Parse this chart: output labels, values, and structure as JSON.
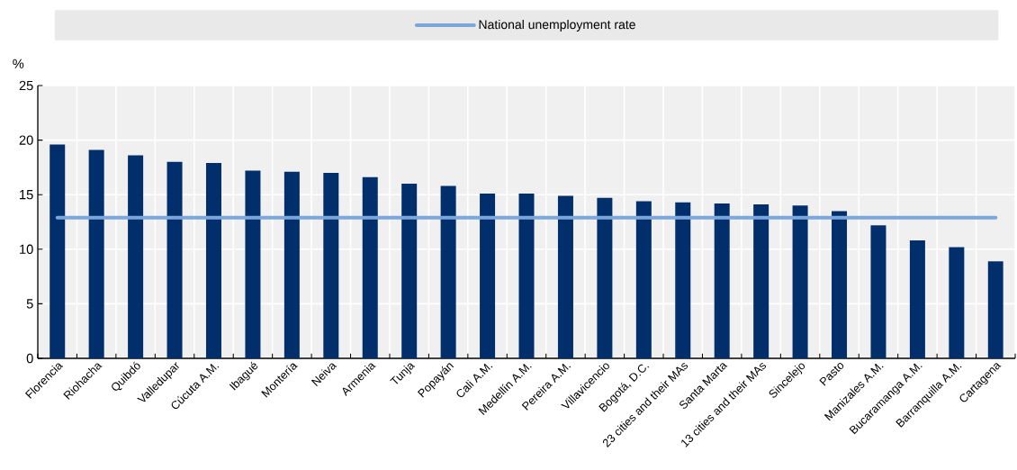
{
  "chart_data": {
    "type": "bar",
    "ylabel": "%",
    "categories": [
      "Florencia",
      "Riohacha",
      "Quibdó",
      "Valledupar",
      "Cúcuta A.M.",
      "Ibagué",
      "Montería",
      "Neiva",
      "Armenia",
      "Tunja",
      "Popayán",
      "Cali A.M.",
      "Medellín A.M.",
      "Pereira A.M.",
      "Villavicencio",
      "Bogotá, D.C.",
      "23 cities and their MAs",
      "Santa Marta",
      "13 cities and their MAs",
      "Sincelejo",
      "Pasto",
      "Manizales A.M.",
      "Bucaramanga A.M.",
      "Barranquilla A.M.",
      "Cartagena"
    ],
    "series": [
      {
        "color": "#002f6c",
        "values": [
          19.6,
          19.1,
          18.6,
          18.0,
          17.9,
          17.2,
          17.1,
          17.0,
          16.6,
          16.0,
          15.8,
          15.1,
          15.1,
          14.9,
          14.7,
          14.4,
          14.3,
          14.2,
          14.1,
          14.0,
          13.5,
          12.2,
          10.8,
          10.2,
          8.9
        ]
      },
      {
        "type": "line",
        "name": "National unemployment rate",
        "color": "#7ba7dc",
        "values": [
          12.9,
          12.9,
          12.9,
          12.9,
          12.9,
          12.9,
          12.9,
          12.9,
          12.9,
          12.9,
          12.9,
          12.9,
          12.9,
          12.9,
          12.9,
          12.9,
          12.9,
          12.9,
          12.9,
          12.9,
          12.9,
          12.9,
          12.9,
          12.9,
          12.9
        ]
      }
    ],
    "ylim": [
      0,
      25
    ],
    "yticks": [
      0,
      5,
      10,
      15,
      20,
      25
    ],
    "grid": true,
    "legend": "top"
  }
}
